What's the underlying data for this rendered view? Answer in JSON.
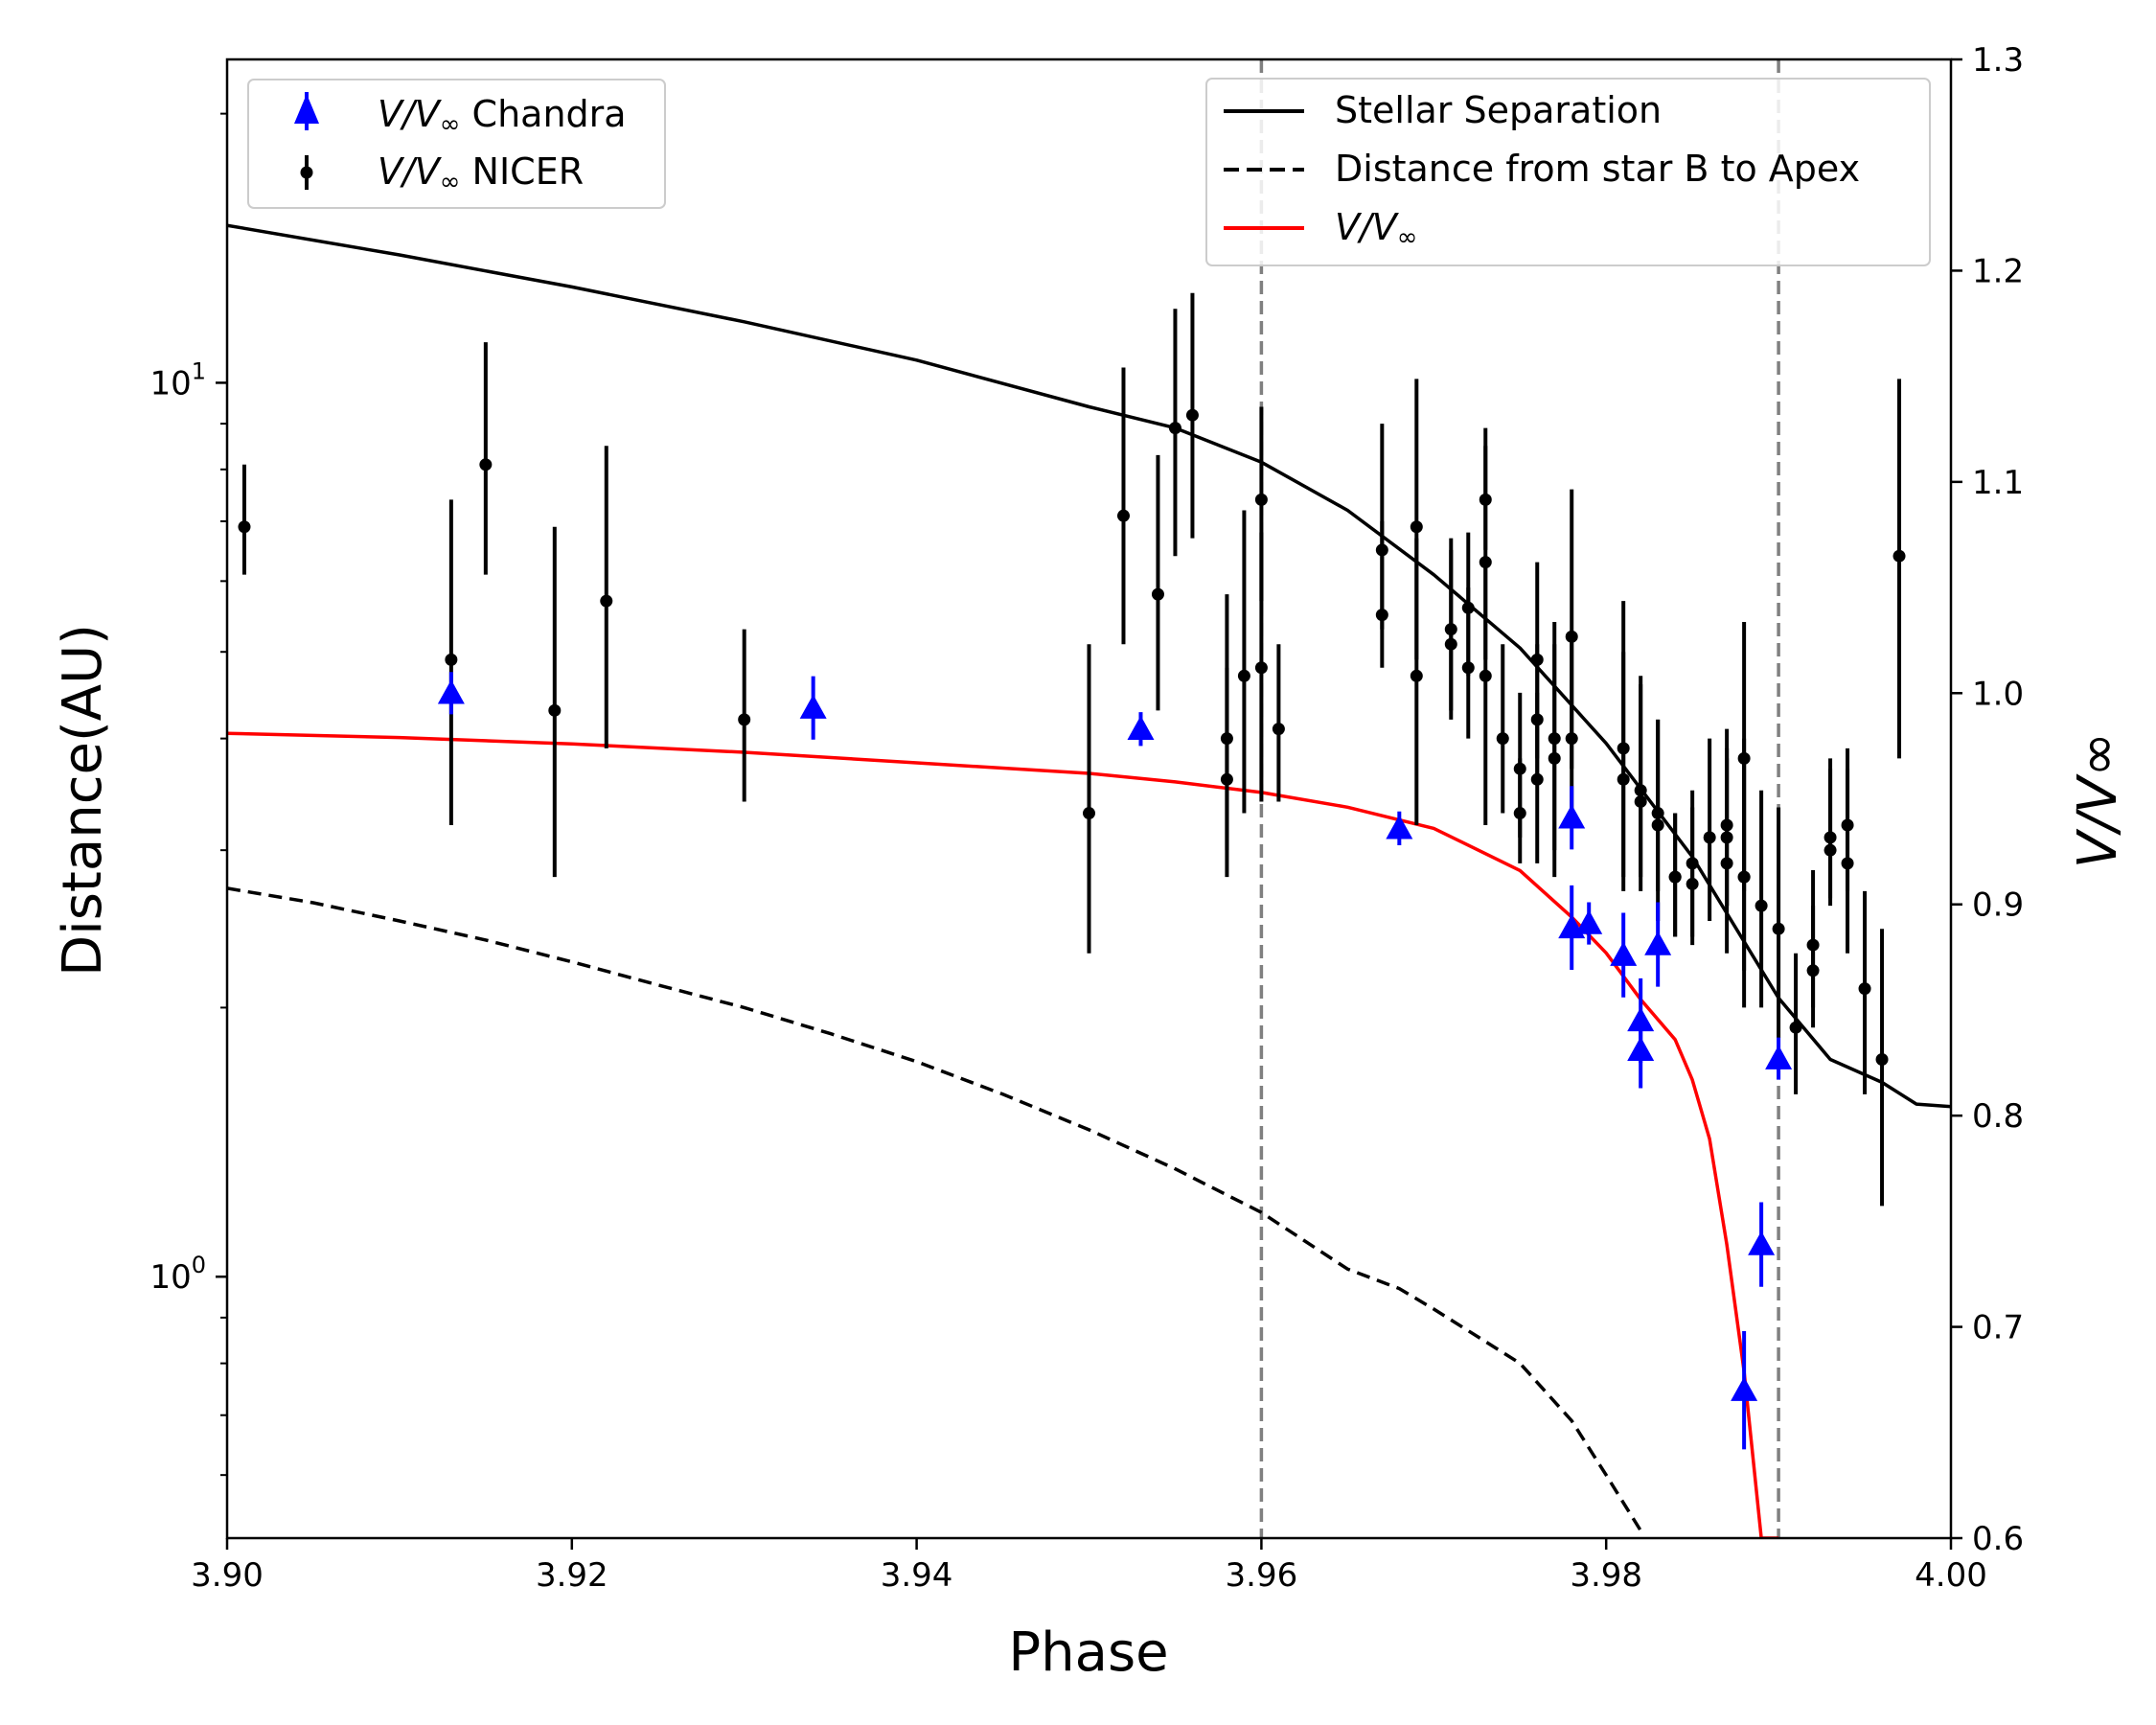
{
  "chart_data": {
    "type": "line",
    "xlabel": "Phase",
    "ylabel": "Distance(AU)",
    "ylabel_right": "V/V∞",
    "xlim": [
      3.9,
      4.0
    ],
    "ylim": [
      0.51,
      23.0
    ],
    "yscale": "log",
    "ylim_right": [
      0.6,
      1.3
    ],
    "x_ticks": [
      3.9,
      3.92,
      3.94,
      3.96,
      3.98,
      4.0
    ],
    "x_tick_labels": [
      "3.90",
      "3.92",
      "3.94",
      "3.96",
      "3.98",
      "4.00"
    ],
    "y_ticks": [
      1,
      10
    ],
    "y_tick_base": "10",
    "y_tick_exponents": [
      "0",
      "1"
    ],
    "y_right_ticks": [
      0.6,
      0.7,
      0.8,
      0.9,
      1.0,
      1.1,
      1.2,
      1.3
    ],
    "y_right_tick_labels": [
      "0.6",
      "0.7",
      "0.8",
      "0.9",
      "1.0",
      "1.1",
      "1.2",
      "1.3"
    ],
    "vertical_lines": [
      3.96,
      3.99
    ],
    "colors": {
      "separation": "#000000",
      "apex": "#000000",
      "vv": "#ff0000",
      "chandra": "#0000ff",
      "nicer": "#000000",
      "vline": "#808080"
    },
    "legend_left": {
      "chandra": {
        "ratio": "V/V",
        "sub": "∞",
        "suffix": " Chandra"
      },
      "nicer": {
        "ratio": "V/V",
        "sub": "∞",
        "suffix": " NICER"
      }
    },
    "legend_right": {
      "separation": "Stellar Separation",
      "apex": "Distance from star B to Apex",
      "vv": {
        "ratio": "V/V",
        "sub": "∞"
      }
    },
    "series": [
      {
        "name": "Stellar Separation",
        "axis": "left",
        "style": "solid",
        "x": [
          3.9,
          3.91,
          3.92,
          3.93,
          3.94,
          3.95,
          3.955,
          3.96,
          3.965,
          3.97,
          3.975,
          3.98,
          3.985,
          3.99,
          3.993,
          3.996,
          3.998,
          4.0
        ],
        "y": [
          15.0,
          13.9,
          12.8,
          11.7,
          10.6,
          9.4,
          8.9,
          8.15,
          7.2,
          6.1,
          5.05,
          3.95,
          2.95,
          2.05,
          1.75,
          1.65,
          1.56,
          1.55
        ]
      },
      {
        "name": "Distance from star B to Apex",
        "axis": "left",
        "style": "dashed",
        "x": [
          3.9,
          3.905,
          3.91,
          3.915,
          3.92,
          3.925,
          3.93,
          3.935,
          3.94,
          3.945,
          3.95,
          3.955,
          3.96,
          3.965,
          3.968,
          3.97,
          3.975,
          3.978,
          3.98,
          3.982
        ],
        "y": [
          2.72,
          2.62,
          2.5,
          2.38,
          2.25,
          2.12,
          2.0,
          1.87,
          1.74,
          1.6,
          1.46,
          1.32,
          1.18,
          1.02,
          0.97,
          0.92,
          0.8,
          0.69,
          0.6,
          0.52
        ]
      },
      {
        "name": "V/V∞",
        "axis": "right",
        "style": "solid",
        "x": [
          3.9,
          3.91,
          3.92,
          3.93,
          3.94,
          3.95,
          3.955,
          3.96,
          3.965,
          3.97,
          3.975,
          3.978,
          3.98,
          3.982,
          3.984,
          3.985,
          3.986,
          3.987,
          3.988,
          3.989,
          3.99
        ],
        "y": [
          0.981,
          0.979,
          0.976,
          0.972,
          0.967,
          0.962,
          0.958,
          0.953,
          0.946,
          0.936,
          0.916,
          0.894,
          0.877,
          0.855,
          0.836,
          0.817,
          0.789,
          0.739,
          0.679,
          0.6,
          0.6
        ]
      },
      {
        "name": "V/V∞ Chandra",
        "axis": "right",
        "marker": "triangle",
        "x": [
          3.913,
          3.934,
          3.953,
          3.968,
          3.978,
          3.978,
          3.979,
          3.981,
          3.982,
          3.982,
          3.983,
          3.988,
          3.989,
          3.99
        ],
        "y": [
          1.0,
          0.993,
          0.983,
          0.936,
          0.941,
          0.889,
          0.891,
          0.876,
          0.845,
          0.831,
          0.881,
          0.67,
          0.739,
          0.827
        ],
        "err": [
          0.01,
          0.015,
          0.008,
          0.008,
          0.015,
          0.02,
          0.01,
          0.02,
          0.02,
          0.018,
          0.02,
          0.028,
          0.02,
          0.01
        ]
      },
      {
        "name": "V/V∞ NICER",
        "axis": "left",
        "marker": "circle",
        "x": [
          3.901,
          3.913,
          3.915,
          3.919,
          3.922,
          3.93,
          3.95,
          3.952,
          3.954,
          3.955,
          3.956,
          3.958,
          3.958,
          3.959,
          3.96,
          3.96,
          3.961,
          3.967,
          3.967,
          3.969,
          3.969,
          3.971,
          3.971,
          3.972,
          3.972,
          3.973,
          3.973,
          3.973,
          3.974,
          3.975,
          3.975,
          3.976,
          3.976,
          3.976,
          3.977,
          3.977,
          3.978,
          3.978,
          3.981,
          3.981,
          3.982,
          3.982,
          3.983,
          3.983,
          3.984,
          3.984,
          3.985,
          3.985,
          3.986,
          3.987,
          3.987,
          3.987,
          3.988,
          3.988,
          3.988,
          3.989,
          3.99,
          3.991,
          3.992,
          3.992,
          3.993,
          3.993,
          3.994,
          3.994,
          3.995,
          3.996,
          3.997
        ],
        "y": [
          6.9,
          4.9,
          8.1,
          4.3,
          5.7,
          4.2,
          3.3,
          7.1,
          5.8,
          8.9,
          9.2,
          3.6,
          4.0,
          4.7,
          7.4,
          4.8,
          4.1,
          5.5,
          6.5,
          6.9,
          4.7,
          5.1,
          5.3,
          5.6,
          4.8,
          7.4,
          4.7,
          6.3,
          4.0,
          3.3,
          3.7,
          4.2,
          3.6,
          4.9,
          3.8,
          4.0,
          5.2,
          4.0,
          3.9,
          3.6,
          3.5,
          3.4,
          3.3,
          3.2,
          2.8,
          2.8,
          2.75,
          2.9,
          3.1,
          3.1,
          2.9,
          3.2,
          3.8,
          2.8,
          2.8,
          2.6,
          2.45,
          1.9,
          2.2,
          2.35,
          3.0,
          3.1,
          3.2,
          2.9,
          2.1,
          1.75,
          6.4
        ],
        "err_low": [
          0.8,
          1.7,
          2.0,
          1.5,
          1.8,
          0.8,
          1.0,
          2.0,
          1.5,
          2.5,
          2.5,
          0.6,
          1.2,
          1.4,
          1.7,
          1.4,
          0.7,
          0.7,
          1.2,
          2.0,
          1.5,
          0.8,
          1.1,
          0.9,
          0.8,
          0.9,
          1.5,
          1.4,
          0.7,
          0.4,
          0.6,
          0.6,
          0.7,
          1.1,
          1.0,
          1.0,
          1.5,
          0.8,
          1.1,
          0.9,
          0.7,
          0.7,
          0.6,
          0.7,
          0.4,
          0.4,
          0.4,
          0.5,
          0.6,
          0.5,
          0.6,
          0.6,
          1.1,
          0.8,
          0.6,
          0.6,
          0.6,
          0.3,
          0.3,
          0.35,
          0.4,
          0.45,
          0.5,
          0.6,
          0.5,
          0.55,
          2.6
        ],
        "err_high": [
          1.2,
          2.5,
          3.0,
          2.6,
          2.8,
          1.1,
          1.8,
          3.3,
          2.5,
          3.2,
          3.4,
          1.2,
          1.8,
          2.5,
          2.0,
          2.0,
          1.0,
          1.5,
          2.5,
          3.2,
          2.0,
          1.4,
          1.4,
          1.2,
          1.1,
          1.5,
          1.7,
          2.2,
          1.1,
          0.5,
          0.8,
          0.9,
          0.9,
          1.4,
          1.3,
          1.4,
          2.4,
          1.2,
          1.8,
          1.4,
          1.2,
          1.2,
          0.9,
          1.0,
          0.5,
          0.5,
          0.6,
          0.6,
          0.9,
          0.8,
          0.9,
          0.9,
          1.6,
          1.2,
          1.0,
          0.9,
          0.9,
          0.4,
          0.4,
          0.5,
          0.7,
          0.7,
          0.7,
          0.8,
          0.6,
          0.7,
          3.7
        ]
      }
    ]
  }
}
